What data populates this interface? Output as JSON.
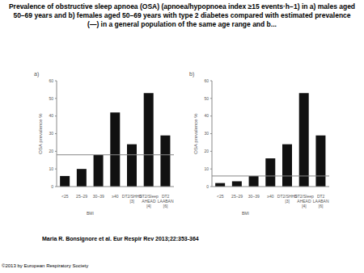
{
  "title": "Prevalence of obstructive sleep apnoea (OSA) (apnoea/hypopnoea index ≥15 events·h−1) in a) males aged 50–69 years and b) females aged 50–69 years with type 2 diabetes compared with estimated prevalence (—) in a general population of the same age range and b...",
  "citation": "Maria R. Bonsignore et al. Eur Respir Rev 2013;22:353-364",
  "copyright": "©2013 by European Respiratory Society",
  "chart_data": [
    {
      "type": "bar",
      "title": "a)",
      "y_label": "OSA prevalence %",
      "group_label": "BMI",
      "categories": [
        "<25",
        "25–29",
        "30–39",
        "≥40",
        "DT2/SHHS [3]",
        "DT2/Sleep AHEAD [4]",
        "DT2 LAABAN [6]"
      ],
      "values": [
        6,
        10,
        18,
        42,
        24,
        53,
        29
      ],
      "color": "#111111",
      "general_population_prevalence": 18,
      "ylim": [
        0,
        60
      ],
      "yticks": [
        0,
        10,
        20,
        30,
        40,
        50,
        60
      ],
      "grid": false
    },
    {
      "type": "bar",
      "title": "b)",
      "y_label": "OSA prevalence %",
      "group_label": "BMI",
      "categories": [
        "<25",
        "25–29",
        "30–39",
        "≥40",
        "DT2/SHHS [3]",
        "DT2/Sleep AHEAD [4]",
        "DT2 LAABAN [6]"
      ],
      "values": [
        2,
        3,
        6,
        16,
        24,
        53,
        29
      ],
      "color": "#111111",
      "general_population_prevalence": 6,
      "ylim": [
        0,
        60
      ],
      "yticks": [
        0,
        10,
        20,
        30,
        40,
        50,
        60
      ],
      "grid": false
    }
  ]
}
